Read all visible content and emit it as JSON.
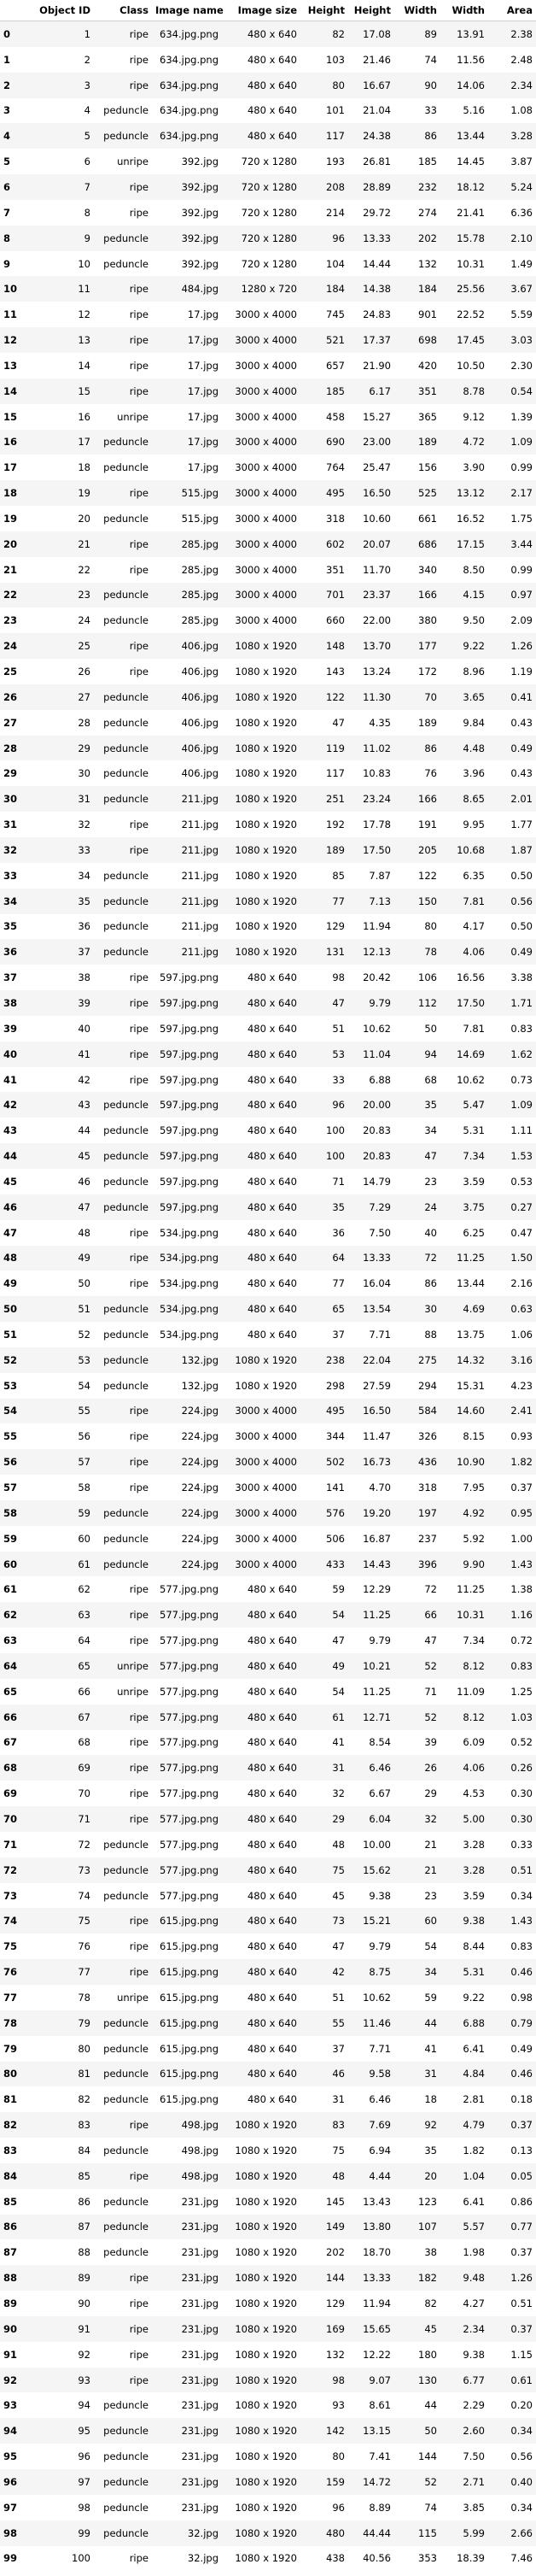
{
  "headers": [
    "",
    "Object ID",
    "Class",
    "Image name",
    "Image size",
    "Height",
    "Height",
    "Width",
    "Width",
    "Area"
  ],
  "rows": [
    [
      "0",
      "1",
      "ripe",
      "634.jpg.png",
      "480 x 640",
      "82",
      "17.08",
      "89",
      "13.91",
      "2.38"
    ],
    [
      "1",
      "2",
      "ripe",
      "634.jpg.png",
      "480 x 640",
      "103",
      "21.46",
      "74",
      "11.56",
      "2.48"
    ],
    [
      "2",
      "3",
      "ripe",
      "634.jpg.png",
      "480 x 640",
      "80",
      "16.67",
      "90",
      "14.06",
      "2.34"
    ],
    [
      "3",
      "4",
      "peduncle",
      "634.jpg.png",
      "480 x 640",
      "101",
      "21.04",
      "33",
      "5.16",
      "1.08"
    ],
    [
      "4",
      "5",
      "peduncle",
      "634.jpg.png",
      "480 x 640",
      "117",
      "24.38",
      "86",
      "13.44",
      "3.28"
    ],
    [
      "5",
      "6",
      "unripe",
      "392.jpg",
      "720 x 1280",
      "193",
      "26.81",
      "185",
      "14.45",
      "3.87"
    ],
    [
      "6",
      "7",
      "ripe",
      "392.jpg",
      "720 x 1280",
      "208",
      "28.89",
      "232",
      "18.12",
      "5.24"
    ],
    [
      "7",
      "8",
      "ripe",
      "392.jpg",
      "720 x 1280",
      "214",
      "29.72",
      "274",
      "21.41",
      "6.36"
    ],
    [
      "8",
      "9",
      "peduncle",
      "392.jpg",
      "720 x 1280",
      "96",
      "13.33",
      "202",
      "15.78",
      "2.10"
    ],
    [
      "9",
      "10",
      "peduncle",
      "392.jpg",
      "720 x 1280",
      "104",
      "14.44",
      "132",
      "10.31",
      "1.49"
    ],
    [
      "10",
      "11",
      "ripe",
      "484.jpg",
      "1280 x 720",
      "184",
      "14.38",
      "184",
      "25.56",
      "3.67"
    ],
    [
      "11",
      "12",
      "ripe",
      "17.jpg",
      "3000 x 4000",
      "745",
      "24.83",
      "901",
      "22.52",
      "5.59"
    ],
    [
      "12",
      "13",
      "ripe",
      "17.jpg",
      "3000 x 4000",
      "521",
      "17.37",
      "698",
      "17.45",
      "3.03"
    ],
    [
      "13",
      "14",
      "ripe",
      "17.jpg",
      "3000 x 4000",
      "657",
      "21.90",
      "420",
      "10.50",
      "2.30"
    ],
    [
      "14",
      "15",
      "ripe",
      "17.jpg",
      "3000 x 4000",
      "185",
      "6.17",
      "351",
      "8.78",
      "0.54"
    ],
    [
      "15",
      "16",
      "unripe",
      "17.jpg",
      "3000 x 4000",
      "458",
      "15.27",
      "365",
      "9.12",
      "1.39"
    ],
    [
      "16",
      "17",
      "peduncle",
      "17.jpg",
      "3000 x 4000",
      "690",
      "23.00",
      "189",
      "4.72",
      "1.09"
    ],
    [
      "17",
      "18",
      "peduncle",
      "17.jpg",
      "3000 x 4000",
      "764",
      "25.47",
      "156",
      "3.90",
      "0.99"
    ],
    [
      "18",
      "19",
      "ripe",
      "515.jpg",
      "3000 x 4000",
      "495",
      "16.50",
      "525",
      "13.12",
      "2.17"
    ],
    [
      "19",
      "20",
      "peduncle",
      "515.jpg",
      "3000 x 4000",
      "318",
      "10.60",
      "661",
      "16.52",
      "1.75"
    ],
    [
      "20",
      "21",
      "ripe",
      "285.jpg",
      "3000 x 4000",
      "602",
      "20.07",
      "686",
      "17.15",
      "3.44"
    ],
    [
      "21",
      "22",
      "ripe",
      "285.jpg",
      "3000 x 4000",
      "351",
      "11.70",
      "340",
      "8.50",
      "0.99"
    ],
    [
      "22",
      "23",
      "peduncle",
      "285.jpg",
      "3000 x 4000",
      "701",
      "23.37",
      "166",
      "4.15",
      "0.97"
    ],
    [
      "23",
      "24",
      "peduncle",
      "285.jpg",
      "3000 x 4000",
      "660",
      "22.00",
      "380",
      "9.50",
      "2.09"
    ],
    [
      "24",
      "25",
      "ripe",
      "406.jpg",
      "1080 x 1920",
      "148",
      "13.70",
      "177",
      "9.22",
      "1.26"
    ],
    [
      "25",
      "26",
      "ripe",
      "406.jpg",
      "1080 x 1920",
      "143",
      "13.24",
      "172",
      "8.96",
      "1.19"
    ],
    [
      "26",
      "27",
      "peduncle",
      "406.jpg",
      "1080 x 1920",
      "122",
      "11.30",
      "70",
      "3.65",
      "0.41"
    ],
    [
      "27",
      "28",
      "peduncle",
      "406.jpg",
      "1080 x 1920",
      "47",
      "4.35",
      "189",
      "9.84",
      "0.43"
    ],
    [
      "28",
      "29",
      "peduncle",
      "406.jpg",
      "1080 x 1920",
      "119",
      "11.02",
      "86",
      "4.48",
      "0.49"
    ],
    [
      "29",
      "30",
      "peduncle",
      "406.jpg",
      "1080 x 1920",
      "117",
      "10.83",
      "76",
      "3.96",
      "0.43"
    ],
    [
      "30",
      "31",
      "peduncle",
      "211.jpg",
      "1080 x 1920",
      "251",
      "23.24",
      "166",
      "8.65",
      "2.01"
    ],
    [
      "31",
      "32",
      "ripe",
      "211.jpg",
      "1080 x 1920",
      "192",
      "17.78",
      "191",
      "9.95",
      "1.77"
    ],
    [
      "32",
      "33",
      "ripe",
      "211.jpg",
      "1080 x 1920",
      "189",
      "17.50",
      "205",
      "10.68",
      "1.87"
    ],
    [
      "33",
      "34",
      "peduncle",
      "211.jpg",
      "1080 x 1920",
      "85",
      "7.87",
      "122",
      "6.35",
      "0.50"
    ],
    [
      "34",
      "35",
      "peduncle",
      "211.jpg",
      "1080 x 1920",
      "77",
      "7.13",
      "150",
      "7.81",
      "0.56"
    ],
    [
      "35",
      "36",
      "peduncle",
      "211.jpg",
      "1080 x 1920",
      "129",
      "11.94",
      "80",
      "4.17",
      "0.50"
    ],
    [
      "36",
      "37",
      "peduncle",
      "211.jpg",
      "1080 x 1920",
      "131",
      "12.13",
      "78",
      "4.06",
      "0.49"
    ],
    [
      "37",
      "38",
      "ripe",
      "597.jpg.png",
      "480 x 640",
      "98",
      "20.42",
      "106",
      "16.56",
      "3.38"
    ],
    [
      "38",
      "39",
      "ripe",
      "597.jpg.png",
      "480 x 640",
      "47",
      "9.79",
      "112",
      "17.50",
      "1.71"
    ],
    [
      "39",
      "40",
      "ripe",
      "597.jpg.png",
      "480 x 640",
      "51",
      "10.62",
      "50",
      "7.81",
      "0.83"
    ],
    [
      "40",
      "41",
      "ripe",
      "597.jpg.png",
      "480 x 640",
      "53",
      "11.04",
      "94",
      "14.69",
      "1.62"
    ],
    [
      "41",
      "42",
      "ripe",
      "597.jpg.png",
      "480 x 640",
      "33",
      "6.88",
      "68",
      "10.62",
      "0.73"
    ],
    [
      "42",
      "43",
      "peduncle",
      "597.jpg.png",
      "480 x 640",
      "96",
      "20.00",
      "35",
      "5.47",
      "1.09"
    ],
    [
      "43",
      "44",
      "peduncle",
      "597.jpg.png",
      "480 x 640",
      "100",
      "20.83",
      "34",
      "5.31",
      "1.11"
    ],
    [
      "44",
      "45",
      "peduncle",
      "597.jpg.png",
      "480 x 640",
      "100",
      "20.83",
      "47",
      "7.34",
      "1.53"
    ],
    [
      "45",
      "46",
      "peduncle",
      "597.jpg.png",
      "480 x 640",
      "71",
      "14.79",
      "23",
      "3.59",
      "0.53"
    ],
    [
      "46",
      "47",
      "peduncle",
      "597.jpg.png",
      "480 x 640",
      "35",
      "7.29",
      "24",
      "3.75",
      "0.27"
    ],
    [
      "47",
      "48",
      "ripe",
      "534.jpg.png",
      "480 x 640",
      "36",
      "7.50",
      "40",
      "6.25",
      "0.47"
    ],
    [
      "48",
      "49",
      "ripe",
      "534.jpg.png",
      "480 x 640",
      "64",
      "13.33",
      "72",
      "11.25",
      "1.50"
    ],
    [
      "49",
      "50",
      "ripe",
      "534.jpg.png",
      "480 x 640",
      "77",
      "16.04",
      "86",
      "13.44",
      "2.16"
    ],
    [
      "50",
      "51",
      "peduncle",
      "534.jpg.png",
      "480 x 640",
      "65",
      "13.54",
      "30",
      "4.69",
      "0.63"
    ],
    [
      "51",
      "52",
      "peduncle",
      "534.jpg.png",
      "480 x 640",
      "37",
      "7.71",
      "88",
      "13.75",
      "1.06"
    ],
    [
      "52",
      "53",
      "peduncle",
      "132.jpg",
      "1080 x 1920",
      "238",
      "22.04",
      "275",
      "14.32",
      "3.16"
    ],
    [
      "53",
      "54",
      "peduncle",
      "132.jpg",
      "1080 x 1920",
      "298",
      "27.59",
      "294",
      "15.31",
      "4.23"
    ],
    [
      "54",
      "55",
      "ripe",
      "224.jpg",
      "3000 x 4000",
      "495",
      "16.50",
      "584",
      "14.60",
      "2.41"
    ],
    [
      "55",
      "56",
      "ripe",
      "224.jpg",
      "3000 x 4000",
      "344",
      "11.47",
      "326",
      "8.15",
      "0.93"
    ],
    [
      "56",
      "57",
      "ripe",
      "224.jpg",
      "3000 x 4000",
      "502",
      "16.73",
      "436",
      "10.90",
      "1.82"
    ],
    [
      "57",
      "58",
      "ripe",
      "224.jpg",
      "3000 x 4000",
      "141",
      "4.70",
      "318",
      "7.95",
      "0.37"
    ],
    [
      "58",
      "59",
      "peduncle",
      "224.jpg",
      "3000 x 4000",
      "576",
      "19.20",
      "197",
      "4.92",
      "0.95"
    ],
    [
      "59",
      "60",
      "peduncle",
      "224.jpg",
      "3000 x 4000",
      "506",
      "16.87",
      "237",
      "5.92",
      "1.00"
    ],
    [
      "60",
      "61",
      "peduncle",
      "224.jpg",
      "3000 x 4000",
      "433",
      "14.43",
      "396",
      "9.90",
      "1.43"
    ],
    [
      "61",
      "62",
      "ripe",
      "577.jpg.png",
      "480 x 640",
      "59",
      "12.29",
      "72",
      "11.25",
      "1.38"
    ],
    [
      "62",
      "63",
      "ripe",
      "577.jpg.png",
      "480 x 640",
      "54",
      "11.25",
      "66",
      "10.31",
      "1.16"
    ],
    [
      "63",
      "64",
      "ripe",
      "577.jpg.png",
      "480 x 640",
      "47",
      "9.79",
      "47",
      "7.34",
      "0.72"
    ],
    [
      "64",
      "65",
      "unripe",
      "577.jpg.png",
      "480 x 640",
      "49",
      "10.21",
      "52",
      "8.12",
      "0.83"
    ],
    [
      "65",
      "66",
      "unripe",
      "577.jpg.png",
      "480 x 640",
      "54",
      "11.25",
      "71",
      "11.09",
      "1.25"
    ],
    [
      "66",
      "67",
      "ripe",
      "577.jpg.png",
      "480 x 640",
      "61",
      "12.71",
      "52",
      "8.12",
      "1.03"
    ],
    [
      "67",
      "68",
      "ripe",
      "577.jpg.png",
      "480 x 640",
      "41",
      "8.54",
      "39",
      "6.09",
      "0.52"
    ],
    [
      "68",
      "69",
      "ripe",
      "577.jpg.png",
      "480 x 640",
      "31",
      "6.46",
      "26",
      "4.06",
      "0.26"
    ],
    [
      "69",
      "70",
      "ripe",
      "577.jpg.png",
      "480 x 640",
      "32",
      "6.67",
      "29",
      "4.53",
      "0.30"
    ],
    [
      "70",
      "71",
      "ripe",
      "577.jpg.png",
      "480 x 640",
      "29",
      "6.04",
      "32",
      "5.00",
      "0.30"
    ],
    [
      "71",
      "72",
      "peduncle",
      "577.jpg.png",
      "480 x 640",
      "48",
      "10.00",
      "21",
      "3.28",
      "0.33"
    ],
    [
      "72",
      "73",
      "peduncle",
      "577.jpg.png",
      "480 x 640",
      "75",
      "15.62",
      "21",
      "3.28",
      "0.51"
    ],
    [
      "73",
      "74",
      "peduncle",
      "577.jpg.png",
      "480 x 640",
      "45",
      "9.38",
      "23",
      "3.59",
      "0.34"
    ],
    [
      "74",
      "75",
      "ripe",
      "615.jpg.png",
      "480 x 640",
      "73",
      "15.21",
      "60",
      "9.38",
      "1.43"
    ],
    [
      "75",
      "76",
      "ripe",
      "615.jpg.png",
      "480 x 640",
      "47",
      "9.79",
      "54",
      "8.44",
      "0.83"
    ],
    [
      "76",
      "77",
      "ripe",
      "615.jpg.png",
      "480 x 640",
      "42",
      "8.75",
      "34",
      "5.31",
      "0.46"
    ],
    [
      "77",
      "78",
      "unripe",
      "615.jpg.png",
      "480 x 640",
      "51",
      "10.62",
      "59",
      "9.22",
      "0.98"
    ],
    [
      "78",
      "79",
      "peduncle",
      "615.jpg.png",
      "480 x 640",
      "55",
      "11.46",
      "44",
      "6.88",
      "0.79"
    ],
    [
      "79",
      "80",
      "peduncle",
      "615.jpg.png",
      "480 x 640",
      "37",
      "7.71",
      "41",
      "6.41",
      "0.49"
    ],
    [
      "80",
      "81",
      "peduncle",
      "615.jpg.png",
      "480 x 640",
      "46",
      "9.58",
      "31",
      "4.84",
      "0.46"
    ],
    [
      "81",
      "82",
      "peduncle",
      "615.jpg.png",
      "480 x 640",
      "31",
      "6.46",
      "18",
      "2.81",
      "0.18"
    ],
    [
      "82",
      "83",
      "ripe",
      "498.jpg",
      "1080 x 1920",
      "83",
      "7.69",
      "92",
      "4.79",
      "0.37"
    ],
    [
      "83",
      "84",
      "peduncle",
      "498.jpg",
      "1080 x 1920",
      "75",
      "6.94",
      "35",
      "1.82",
      "0.13"
    ],
    [
      "84",
      "85",
      "ripe",
      "498.jpg",
      "1080 x 1920",
      "48",
      "4.44",
      "20",
      "1.04",
      "0.05"
    ],
    [
      "85",
      "86",
      "peduncle",
      "231.jpg",
      "1080 x 1920",
      "145",
      "13.43",
      "123",
      "6.41",
      "0.86"
    ],
    [
      "86",
      "87",
      "peduncle",
      "231.jpg",
      "1080 x 1920",
      "149",
      "13.80",
      "107",
      "5.57",
      "0.77"
    ],
    [
      "87",
      "88",
      "peduncle",
      "231.jpg",
      "1080 x 1920",
      "202",
      "18.70",
      "38",
      "1.98",
      "0.37"
    ],
    [
      "88",
      "89",
      "ripe",
      "231.jpg",
      "1080 x 1920",
      "144",
      "13.33",
      "182",
      "9.48",
      "1.26"
    ],
    [
      "89",
      "90",
      "ripe",
      "231.jpg",
      "1080 x 1920",
      "129",
      "11.94",
      "82",
      "4.27",
      "0.51"
    ],
    [
      "90",
      "91",
      "ripe",
      "231.jpg",
      "1080 x 1920",
      "169",
      "15.65",
      "45",
      "2.34",
      "0.37"
    ],
    [
      "91",
      "92",
      "ripe",
      "231.jpg",
      "1080 x 1920",
      "132",
      "12.22",
      "180",
      "9.38",
      "1.15"
    ],
    [
      "92",
      "93",
      "ripe",
      "231.jpg",
      "1080 x 1920",
      "98",
      "9.07",
      "130",
      "6.77",
      "0.61"
    ],
    [
      "93",
      "94",
      "peduncle",
      "231.jpg",
      "1080 x 1920",
      "93",
      "8.61",
      "44",
      "2.29",
      "0.20"
    ],
    [
      "94",
      "95",
      "peduncle",
      "231.jpg",
      "1080 x 1920",
      "142",
      "13.15",
      "50",
      "2.60",
      "0.34"
    ],
    [
      "95",
      "96",
      "peduncle",
      "231.jpg",
      "1080 x 1920",
      "80",
      "7.41",
      "144",
      "7.50",
      "0.56"
    ],
    [
      "96",
      "97",
      "peduncle",
      "231.jpg",
      "1080 x 1920",
      "159",
      "14.72",
      "52",
      "2.71",
      "0.40"
    ],
    [
      "97",
      "98",
      "peduncle",
      "231.jpg",
      "1080 x 1920",
      "96",
      "8.89",
      "74",
      "3.85",
      "0.34"
    ],
    [
      "98",
      "99",
      "peduncle",
      "32.jpg",
      "1080 x 1920",
      "480",
      "44.44",
      "115",
      "5.99",
      "2.66"
    ],
    [
      "99",
      "100",
      "ripe",
      "32.jpg",
      "1080 x 1920",
      "438",
      "40.56",
      "353",
      "18.39",
      "7.46"
    ]
  ]
}
